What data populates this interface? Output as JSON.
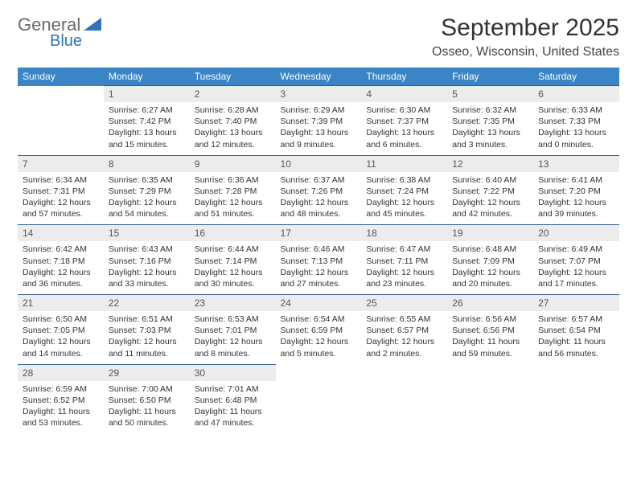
{
  "logo": {
    "text1": "General",
    "text2": "Blue"
  },
  "header": {
    "month": "September 2025",
    "location": "Osseo, Wisconsin, United States"
  },
  "colors": {
    "header_bg": "#3a85c6",
    "header_fg": "#ffffff",
    "daynum_bg": "#ececec",
    "rule": "#2d5d8f",
    "logo_blue": "#2d75b5"
  },
  "weekdays": [
    "Sunday",
    "Monday",
    "Tuesday",
    "Wednesday",
    "Thursday",
    "Friday",
    "Saturday"
  ],
  "weeks": [
    [
      null,
      {
        "n": "1",
        "sr": "6:27 AM",
        "ss": "7:42 PM",
        "dl": "13 hours and 15 minutes."
      },
      {
        "n": "2",
        "sr": "6:28 AM",
        "ss": "7:40 PM",
        "dl": "13 hours and 12 minutes."
      },
      {
        "n": "3",
        "sr": "6:29 AM",
        "ss": "7:39 PM",
        "dl": "13 hours and 9 minutes."
      },
      {
        "n": "4",
        "sr": "6:30 AM",
        "ss": "7:37 PM",
        "dl": "13 hours and 6 minutes."
      },
      {
        "n": "5",
        "sr": "6:32 AM",
        "ss": "7:35 PM",
        "dl": "13 hours and 3 minutes."
      },
      {
        "n": "6",
        "sr": "6:33 AM",
        "ss": "7:33 PM",
        "dl": "13 hours and 0 minutes."
      }
    ],
    [
      {
        "n": "7",
        "sr": "6:34 AM",
        "ss": "7:31 PM",
        "dl": "12 hours and 57 minutes."
      },
      {
        "n": "8",
        "sr": "6:35 AM",
        "ss": "7:29 PM",
        "dl": "12 hours and 54 minutes."
      },
      {
        "n": "9",
        "sr": "6:36 AM",
        "ss": "7:28 PM",
        "dl": "12 hours and 51 minutes."
      },
      {
        "n": "10",
        "sr": "6:37 AM",
        "ss": "7:26 PM",
        "dl": "12 hours and 48 minutes."
      },
      {
        "n": "11",
        "sr": "6:38 AM",
        "ss": "7:24 PM",
        "dl": "12 hours and 45 minutes."
      },
      {
        "n": "12",
        "sr": "6:40 AM",
        "ss": "7:22 PM",
        "dl": "12 hours and 42 minutes."
      },
      {
        "n": "13",
        "sr": "6:41 AM",
        "ss": "7:20 PM",
        "dl": "12 hours and 39 minutes."
      }
    ],
    [
      {
        "n": "14",
        "sr": "6:42 AM",
        "ss": "7:18 PM",
        "dl": "12 hours and 36 minutes."
      },
      {
        "n": "15",
        "sr": "6:43 AM",
        "ss": "7:16 PM",
        "dl": "12 hours and 33 minutes."
      },
      {
        "n": "16",
        "sr": "6:44 AM",
        "ss": "7:14 PM",
        "dl": "12 hours and 30 minutes."
      },
      {
        "n": "17",
        "sr": "6:46 AM",
        "ss": "7:13 PM",
        "dl": "12 hours and 27 minutes."
      },
      {
        "n": "18",
        "sr": "6:47 AM",
        "ss": "7:11 PM",
        "dl": "12 hours and 23 minutes."
      },
      {
        "n": "19",
        "sr": "6:48 AM",
        "ss": "7:09 PM",
        "dl": "12 hours and 20 minutes."
      },
      {
        "n": "20",
        "sr": "6:49 AM",
        "ss": "7:07 PM",
        "dl": "12 hours and 17 minutes."
      }
    ],
    [
      {
        "n": "21",
        "sr": "6:50 AM",
        "ss": "7:05 PM",
        "dl": "12 hours and 14 minutes."
      },
      {
        "n": "22",
        "sr": "6:51 AM",
        "ss": "7:03 PM",
        "dl": "12 hours and 11 minutes."
      },
      {
        "n": "23",
        "sr": "6:53 AM",
        "ss": "7:01 PM",
        "dl": "12 hours and 8 minutes."
      },
      {
        "n": "24",
        "sr": "6:54 AM",
        "ss": "6:59 PM",
        "dl": "12 hours and 5 minutes."
      },
      {
        "n": "25",
        "sr": "6:55 AM",
        "ss": "6:57 PM",
        "dl": "12 hours and 2 minutes."
      },
      {
        "n": "26",
        "sr": "6:56 AM",
        "ss": "6:56 PM",
        "dl": "11 hours and 59 minutes."
      },
      {
        "n": "27",
        "sr": "6:57 AM",
        "ss": "6:54 PM",
        "dl": "11 hours and 56 minutes."
      }
    ],
    [
      {
        "n": "28",
        "sr": "6:59 AM",
        "ss": "6:52 PM",
        "dl": "11 hours and 53 minutes."
      },
      {
        "n": "29",
        "sr": "7:00 AM",
        "ss": "6:50 PM",
        "dl": "11 hours and 50 minutes."
      },
      {
        "n": "30",
        "sr": "7:01 AM",
        "ss": "6:48 PM",
        "dl": "11 hours and 47 minutes."
      },
      null,
      null,
      null,
      null
    ]
  ],
  "labels": {
    "sunrise": "Sunrise: ",
    "sunset": "Sunset: ",
    "daylight": "Daylight: "
  }
}
